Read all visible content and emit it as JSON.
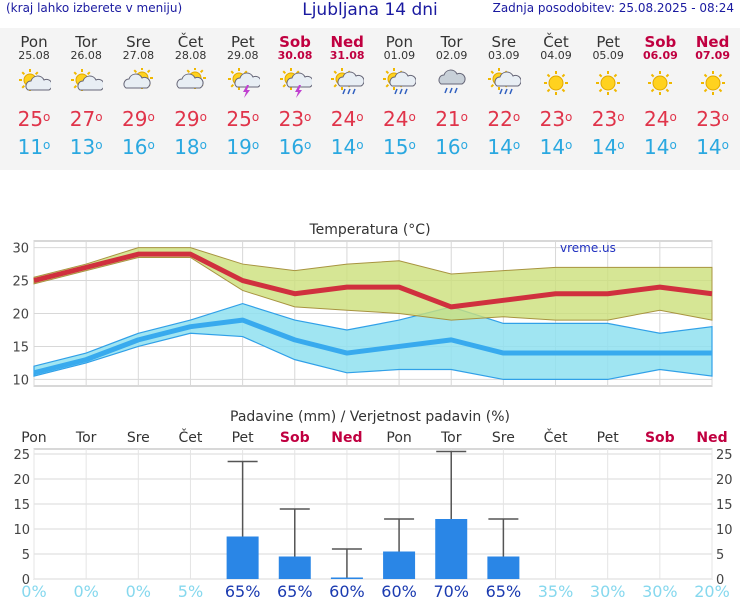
{
  "header": {
    "hint": "(kraj lahko izberete v meniju)",
    "title": "Ljubljana 14 dni",
    "updated": "Zadnja posodobitev: 25.08.2025 - 08:24"
  },
  "days": [
    {
      "name": "Pon",
      "date": "25.08",
      "icon": "sun-cloud-icon",
      "max": "25",
      "min": "11",
      "weekend": false
    },
    {
      "name": "Tor",
      "date": "26.08",
      "icon": "sun-cloud-icon",
      "max": "27",
      "min": "13",
      "weekend": false
    },
    {
      "name": "Sre",
      "date": "27.08",
      "icon": "cloud-sun-icon",
      "max": "29",
      "min": "16",
      "weekend": false
    },
    {
      "name": "Čet",
      "date": "28.08",
      "icon": "cloud-sun-icon",
      "max": "29",
      "min": "18",
      "weekend": false
    },
    {
      "name": "Pet",
      "date": "29.08",
      "icon": "sun-cloud-storm-icon",
      "max": "25",
      "min": "19",
      "weekend": false
    },
    {
      "name": "Sob",
      "date": "30.08",
      "icon": "sun-cloud-storm-icon",
      "max": "23",
      "min": "16",
      "weekend": true
    },
    {
      "name": "Ned",
      "date": "31.08",
      "icon": "sun-cloud-rain-icon",
      "max": "24",
      "min": "14",
      "weekend": true
    },
    {
      "name": "Pon",
      "date": "01.09",
      "icon": "sun-cloud-rain-icon",
      "max": "24",
      "min": "15",
      "weekend": false
    },
    {
      "name": "Tor",
      "date": "02.09",
      "icon": "cloud-rain-icon",
      "max": "21",
      "min": "16",
      "weekend": false
    },
    {
      "name": "Sre",
      "date": "03.09",
      "icon": "sun-cloud-rain-icon",
      "max": "22",
      "min": "14",
      "weekend": false
    },
    {
      "name": "Čet",
      "date": "04.09",
      "icon": "sun-icon",
      "max": "23",
      "min": "14",
      "weekend": false
    },
    {
      "name": "Pet",
      "date": "05.09",
      "icon": "sun-icon",
      "max": "23",
      "min": "14",
      "weekend": false
    },
    {
      "name": "Sob",
      "date": "06.09",
      "icon": "sun-icon",
      "max": "24",
      "min": "14",
      "weekend": true
    },
    {
      "name": "Ned",
      "date": "07.09",
      "icon": "sun-icon",
      "max": "23",
      "min": "14",
      "weekend": true
    }
  ],
  "colors": {
    "max": "#e0344a",
    "min": "#2aa8e0",
    "weekend": "#c00040",
    "maxLine": "#d0303e",
    "minLine": "#38aaee",
    "maxBand": "#cce07a",
    "minBand": "#8fe0f0",
    "bar": "#2a86e6"
  },
  "chart_data": [
    {
      "type": "line",
      "title": "Temperatura (°C)",
      "watermark": "vreme.us",
      "categories": [
        "Pon",
        "Tor",
        "Sre",
        "Čet",
        "Pet",
        "Sob",
        "Ned",
        "Pon",
        "Tor",
        "Sre",
        "Čet",
        "Pet",
        "Sob",
        "Ned"
      ],
      "ylim": [
        9,
        31
      ],
      "yticks": [
        10,
        15,
        20,
        25,
        30
      ],
      "grid": true,
      "series": [
        {
          "values": [
            25,
            27,
            29,
            29,
            25,
            23,
            24,
            24,
            21,
            22,
            23,
            23,
            24,
            23
          ],
          "band_low": [
            24.5,
            26.5,
            28.5,
            28.5,
            23.5,
            21,
            20.5,
            20,
            19,
            19.5,
            19,
            19,
            20.5,
            19
          ],
          "band_high": [
            25.5,
            27.5,
            30,
            30,
            27.5,
            26.5,
            27.5,
            28,
            26,
            26.5,
            27,
            27,
            27,
            27
          ]
        },
        {
          "values": [
            11,
            13,
            16,
            18,
            19,
            16,
            14,
            15,
            16,
            14,
            14,
            14,
            14,
            14
          ],
          "band_low": [
            10.5,
            12.5,
            15,
            17,
            16.5,
            13,
            11,
            11.5,
            11.5,
            10,
            10,
            10,
            11.5,
            10.5
          ],
          "band_high": [
            12,
            14,
            17,
            19,
            21.5,
            19,
            17.5,
            19,
            21,
            18.5,
            18.5,
            18.5,
            17,
            18
          ]
        }
      ]
    },
    {
      "type": "bar",
      "title": "Padavine (mm) / Verjetnost padavin (%)",
      "categories": [
        "Pon",
        "Tor",
        "Sre",
        "Čet",
        "Pet",
        "Sob",
        "Ned",
        "Pon",
        "Tor",
        "Sre",
        "Čet",
        "Pet",
        "Sob",
        "Ned"
      ],
      "weekend": [
        false,
        false,
        false,
        false,
        false,
        true,
        true,
        false,
        false,
        false,
        false,
        false,
        true,
        true
      ],
      "ylim": [
        0,
        26
      ],
      "yticks": [
        0,
        5,
        10,
        15,
        20,
        25
      ],
      "values": [
        0,
        0,
        0,
        0,
        8.5,
        4.5,
        0.3,
        5.5,
        12,
        4.5,
        0,
        0,
        0,
        0
      ],
      "error_high": [
        0,
        0,
        0,
        0,
        23.5,
        14,
        6,
        12,
        25.5,
        12,
        0,
        0,
        0,
        0
      ],
      "probability": [
        "0%",
        "0%",
        "0%",
        "5%",
        "65%",
        "65%",
        "60%",
        "60%",
        "70%",
        "65%",
        "35%",
        "30%",
        "30%",
        "20%"
      ]
    }
  ]
}
